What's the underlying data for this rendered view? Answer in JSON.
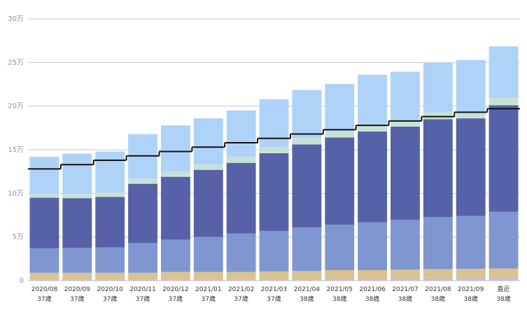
{
  "chart_data": {
    "type": "bar",
    "stacked": true,
    "ylim": [
      0,
      300000
    ],
    "yticks": [
      0,
      50000,
      100000,
      150000,
      200000,
      250000,
      300000
    ],
    "ytick_labels": [
      "0",
      "5万",
      "10万",
      "15万",
      "20万",
      "25万",
      "30万"
    ],
    "categories": [
      {
        "date": "2020/08",
        "age": "37歳"
      },
      {
        "date": "2020/09",
        "age": "37歳"
      },
      {
        "date": "2020/10",
        "age": "37歳"
      },
      {
        "date": "2020/11",
        "age": "37歳"
      },
      {
        "date": "2020/12",
        "age": "37歳"
      },
      {
        "date": "2021/01",
        "age": "37歳"
      },
      {
        "date": "2021/02",
        "age": "37歳"
      },
      {
        "date": "2021/03",
        "age": "37歳"
      },
      {
        "date": "2021/04",
        "age": "38歳"
      },
      {
        "date": "2021/05",
        "age": "38歳"
      },
      {
        "date": "2021/06",
        "age": "38歳"
      },
      {
        "date": "2021/07",
        "age": "38歳"
      },
      {
        "date": "2021/08",
        "age": "38歳"
      },
      {
        "date": "2021/09",
        "age": "38歳"
      },
      {
        "date": "直近",
        "age": "38歳"
      }
    ],
    "series": [
      {
        "color": "#c8b8e0",
        "values": [
          1000,
          1000,
          1000,
          1000,
          1000,
          1000,
          1000,
          1500,
          1500,
          2000,
          2000,
          2500,
          2500,
          3000,
          3000
        ]
      },
      {
        "color": "#d9c48f",
        "values": [
          8000,
          8000,
          8000,
          8000,
          9000,
          9000,
          9000,
          9000,
          9500,
          10000,
          10000,
          10000,
          10500,
          10500,
          11000
        ]
      },
      {
        "color": "#8096d0",
        "values": [
          28000,
          28500,
          29000,
          34000,
          37000,
          40000,
          44000,
          46500,
          50000,
          52000,
          55000,
          57000,
          60000,
          60500,
          65000
        ]
      },
      {
        "color": "#5661a8",
        "values": [
          58000,
          57000,
          58000,
          68000,
          72000,
          77000,
          81000,
          89000,
          95000,
          100000,
          104000,
          107000,
          112000,
          112000,
          122000
        ]
      },
      {
        "color": "#c6e2d6",
        "values": [
          5000,
          5000,
          5000,
          6000,
          6000,
          6000,
          7000,
          7000,
          7500,
          7500,
          8000,
          8000,
          8000,
          8000,
          8500
        ]
      },
      {
        "color": "#afd2f8",
        "values": [
          42000,
          46000,
          47000,
          51000,
          53000,
          53000,
          53000,
          55000,
          55000,
          54000,
          57000,
          55000,
          57000,
          59000,
          59000
        ]
      }
    ],
    "step_line": {
      "color": "#111111",
      "values": [
        128000,
        133000,
        138000,
        143000,
        148000,
        153000,
        158000,
        163000,
        168000,
        173000,
        178000,
        183000,
        188000,
        193000,
        197000
      ]
    }
  }
}
